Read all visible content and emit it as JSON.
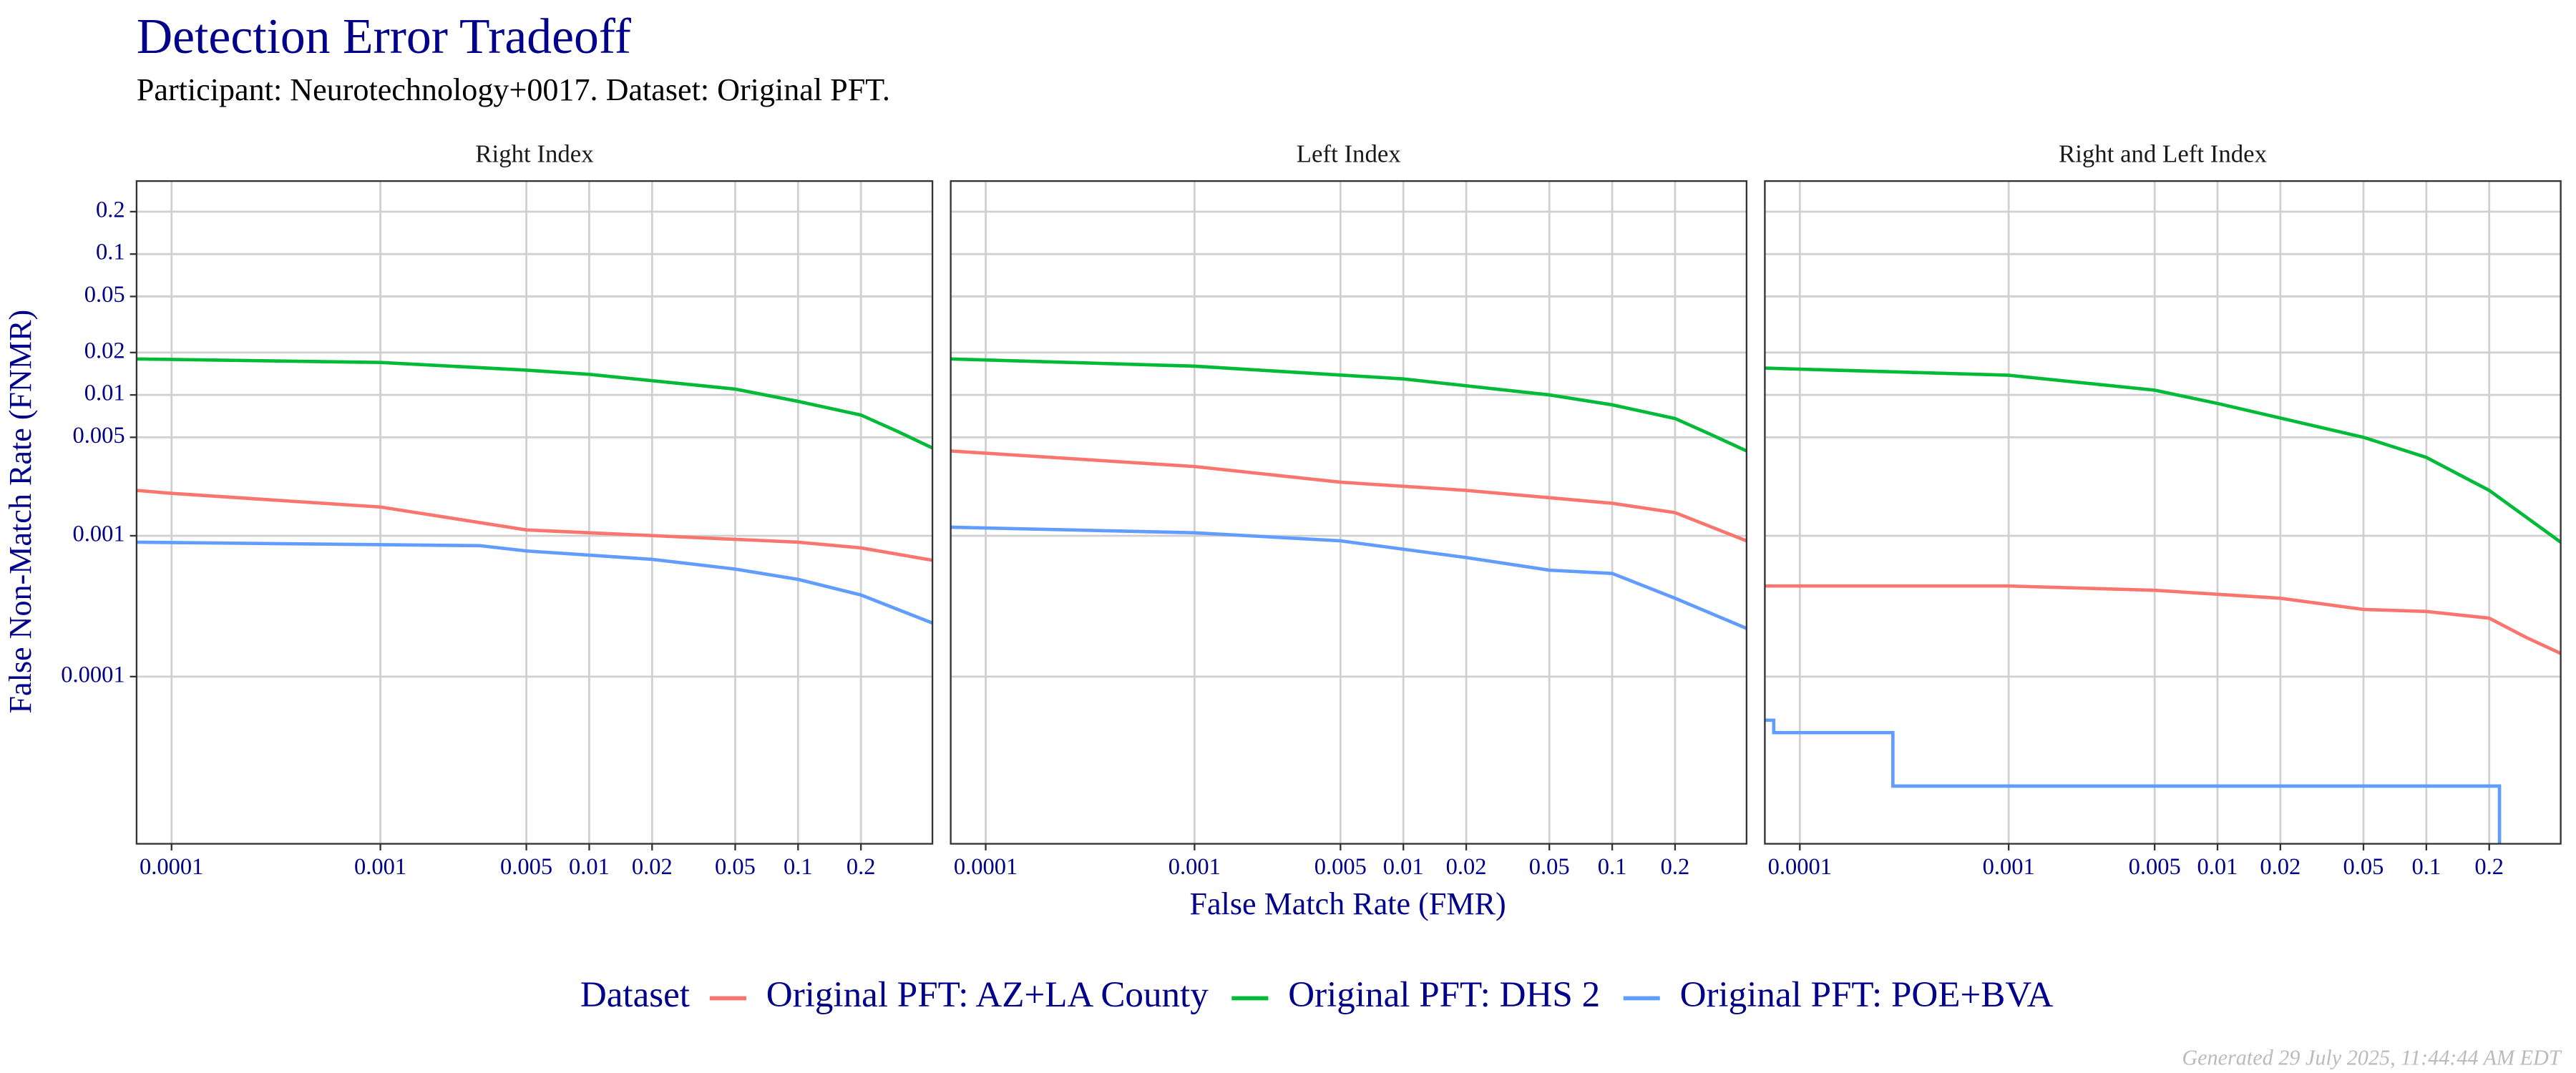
{
  "title": "Detection Error Tradeoff",
  "subtitle": "Participant: Neurotechnology+0017. Dataset: Original PFT.",
  "x_label": "False Match Rate (FMR)",
  "y_label": "False Non-Match Rate (FNMR)",
  "legend_title": "Dataset",
  "footer": "Generated 29 July 2025, 11:44:44 AM EDT",
  "legend": [
    {
      "name": "Original PFT: AZ+LA County",
      "color": "#F8766D"
    },
    {
      "name": "Original PFT: DHS 2",
      "color": "#00BA38"
    },
    {
      "name": "Original PFT: POE+BVA",
      "color": "#619CFF"
    }
  ],
  "chart_data": [
    {
      "type": "line",
      "title": "Right Index",
      "x_scale": "log",
      "y_scale": "log",
      "grid": true,
      "xlim": [
        6.8e-05,
        0.44
      ],
      "ylim": [
        6.5e-06,
        0.33
      ],
      "xticks": [
        0.0001,
        0.001,
        0.005,
        0.01,
        0.02,
        0.05,
        0.1,
        0.2
      ],
      "yticks": [
        0.0001,
        0.001,
        0.005,
        0.01,
        0.02,
        0.05,
        0.1,
        0.2
      ],
      "series": [
        {
          "x": [
            6.8e-05,
            0.0001,
            0.001,
            0.005,
            0.1,
            0.2,
            0.44
          ],
          "values": [
            0.0021,
            0.002,
            0.0016,
            0.0011,
            0.0009,
            0.00082,
            0.00067
          ]
        },
        {
          "x": [
            6.8e-05,
            0.001,
            0.005,
            0.01,
            0.05,
            0.1,
            0.2,
            0.3,
            0.44
          ],
          "values": [
            0.018,
            0.017,
            0.015,
            0.014,
            0.011,
            0.009,
            0.0072,
            0.0055,
            0.0042
          ]
        },
        {
          "x": [
            6.8e-05,
            0.003,
            0.005,
            0.02,
            0.05,
            0.1,
            0.2,
            0.3,
            0.44
          ],
          "values": [
            0.0009,
            0.00085,
            0.00078,
            0.00068,
            0.00058,
            0.00049,
            0.00038,
            0.0003,
            0.00024
          ]
        }
      ]
    },
    {
      "type": "line",
      "title": "Left Index",
      "x_scale": "log",
      "y_scale": "log",
      "grid": true,
      "xlim": [
        6.8e-05,
        0.44
      ],
      "ylim": [
        6.5e-06,
        0.33
      ],
      "xticks": [
        0.0001,
        0.001,
        0.005,
        0.01,
        0.02,
        0.05,
        0.1,
        0.2
      ],
      "yticks": [
        0.0001,
        0.001,
        0.005,
        0.01,
        0.02,
        0.05,
        0.1,
        0.2
      ],
      "series": [
        {
          "x": [
            6.8e-05,
            0.001,
            0.005,
            0.02,
            0.1,
            0.2,
            0.44
          ],
          "values": [
            0.004,
            0.0031,
            0.0024,
            0.0021,
            0.0017,
            0.00146,
            0.00092
          ]
        },
        {
          "x": [
            6.8e-05,
            0.001,
            0.01,
            0.05,
            0.1,
            0.2,
            0.3,
            0.44
          ],
          "values": [
            0.018,
            0.016,
            0.013,
            0.01,
            0.0085,
            0.0068,
            0.0052,
            0.004
          ]
        },
        {
          "x": [
            6.8e-05,
            0.001,
            0.005,
            0.02,
            0.05,
            0.1,
            0.2,
            0.44
          ],
          "values": [
            0.00115,
            0.00105,
            0.00092,
            0.0007,
            0.00057,
            0.00054,
            0.00036,
            0.00022
          ]
        }
      ]
    },
    {
      "type": "line",
      "title": "Right and Left Index",
      "x_scale": "log",
      "y_scale": "log",
      "grid": true,
      "xlim": [
        6.8e-05,
        0.44
      ],
      "ylim": [
        6.5e-06,
        0.33
      ],
      "xticks": [
        0.0001,
        0.001,
        0.005,
        0.01,
        0.02,
        0.05,
        0.1,
        0.2
      ],
      "yticks": [
        0.0001,
        0.001,
        0.005,
        0.01,
        0.02,
        0.05,
        0.1,
        0.2
      ],
      "series": [
        {
          "x": [
            6.8e-05,
            0.001,
            0.005,
            0.02,
            0.05,
            0.1,
            0.2,
            0.3,
            0.44
          ],
          "values": [
            0.00044,
            0.00044,
            0.00041,
            0.00036,
            0.0003,
            0.00029,
            0.00026,
            0.00019,
            0.000146
          ]
        },
        {
          "x": [
            6.8e-05,
            0.001,
            0.005,
            0.01,
            0.05,
            0.1,
            0.2,
            0.44
          ],
          "values": [
            0.0155,
            0.0138,
            0.0108,
            0.0087,
            0.005,
            0.0036,
            0.0021,
            0.0009
          ]
        },
        {
          "x": [
            6.8e-05,
            7.5e-05,
            7.5e-05,
            0.000279,
            0.000279,
            0.224,
            0.224
          ],
          "values": [
            4.9e-05,
            4.9e-05,
            4e-05,
            4e-05,
            1.67e-05,
            1.67e-05,
            6.5e-06
          ]
        }
      ]
    }
  ]
}
